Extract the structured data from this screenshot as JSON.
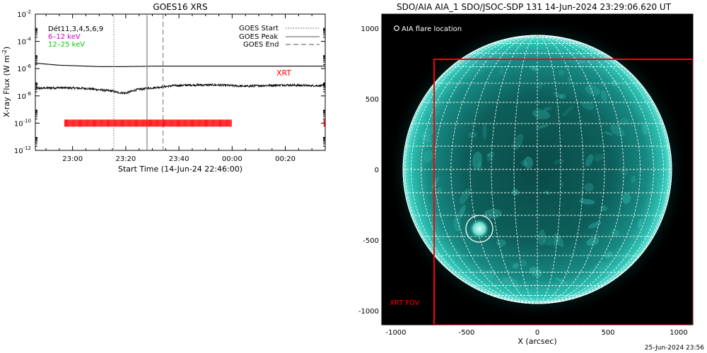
{
  "colors": {
    "ink": "#000000",
    "xrt": "#ff0000",
    "band_6_12": "#cc00cc",
    "band_12_25": "#00cc00",
    "solar_disk": "#1fb8a8",
    "flare_circle": "#ffffff"
  },
  "chart_data": [
    {
      "type": "line",
      "title": "GOES16 XRS",
      "xlabel": "Start Time (14-Jun-24 22:46:00)",
      "ylabel": "X-ray Flux (W m⁻²)",
      "ylabel_base": "X-ray Flux (W m",
      "ylabel_exp": "-2",
      "ylabel_close": ")",
      "yscale": "log",
      "x_range_minutes": [
        -14,
        95
      ],
      "ylim_exponent": [
        -12,
        -2
      ],
      "x_ticks": [
        {
          "minute": 0,
          "label": "23:00"
        },
        {
          "minute": 20,
          "label": "23:20"
        },
        {
          "minute": 40,
          "label": "23:40"
        },
        {
          "minute": 60,
          "label": "00:00"
        },
        {
          "minute": 80,
          "label": "00:20"
        }
      ],
      "y_ticks": [
        {
          "exp": -12,
          "label_base": "10",
          "label_exp": "-12"
        },
        {
          "exp": -10,
          "label_base": "10",
          "label_exp": "-10"
        },
        {
          "exp": -8,
          "label_base": "10",
          "label_exp": "-8"
        },
        {
          "exp": -6,
          "label_base": "10",
          "label_exp": "-6"
        },
        {
          "exp": -4,
          "label_base": "10",
          "label_exp": "-4"
        },
        {
          "exp": -2,
          "label_base": "10",
          "label_exp": "-2"
        }
      ],
      "band_labels": [
        "Dét11,3,4,5,6,9",
        "6–12 keV",
        "12–25 keV"
      ],
      "legend": {
        "position": "top-right",
        "entries": [
          {
            "label": "GOES Start",
            "style": "dotted"
          },
          {
            "label": "GOES Peak",
            "style": "solid"
          },
          {
            "label": "GOES End",
            "style": "dashed"
          }
        ]
      },
      "xrt_label": "XRT",
      "series": [
        {
          "style": "solid",
          "x_minutes": [
            -14,
            -5,
            10,
            20,
            30,
            40,
            50,
            60,
            70,
            80,
            95
          ],
          "y_exponent": [
            -5.6,
            -5.75,
            -5.85,
            -5.85,
            -5.82,
            -5.82,
            -5.82,
            -5.82,
            -5.82,
            -5.82,
            -5.82
          ]
        },
        {
          "style": "noisy",
          "x_minutes": [
            -14,
            -5,
            5,
            15,
            17,
            20,
            24,
            28,
            33,
            38,
            45,
            55,
            60,
            65,
            70,
            80,
            90,
            95
          ],
          "y_exponent": [
            -7.45,
            -7.4,
            -7.45,
            -7.65,
            -7.75,
            -7.8,
            -7.55,
            -7.45,
            -7.35,
            -7.25,
            -7.2,
            -7.2,
            -7.25,
            -7.3,
            -7.25,
            -7.2,
            -7.25,
            -7.25
          ]
        }
      ],
      "events_minutes": {
        "start": 15.5,
        "peak": 28,
        "end": 34
      },
      "xrt_observation_windows_minutes": [
        [
          -3,
          60
        ],
        [
          94.5,
          95
        ]
      ]
    },
    {
      "type": "scatter",
      "title": "SDO/AIA AIA_1 SDO/JSOC-SDP 131 14-Jun-2024 23:29:06.620 UT",
      "xlabel": "X (arcsec)",
      "ylabel": "",
      "xlim": [
        -1100,
        1100
      ],
      "ylim": [
        -1100,
        1100
      ],
      "x_ticks": [
        -1000,
        -500,
        0,
        500,
        1000
      ],
      "y_ticks": [
        -1000,
        -500,
        0,
        500,
        1000
      ],
      "solar_radius_arcsec": 950,
      "grid_spacing_deg": 10,
      "legend_label": "AIA flare location",
      "flare_location_arcsec": [
        -410,
        -420
      ],
      "flare_circle_radius_arcsec": 95,
      "xrt_fov_label": "XRT FOV",
      "xrt_fov_arcsec": {
        "x0": -730,
        "x1": 1100,
        "y0": -1100,
        "y1": 780
      },
      "footer_timestamp": "25-Jun-2024 23:56"
    }
  ]
}
